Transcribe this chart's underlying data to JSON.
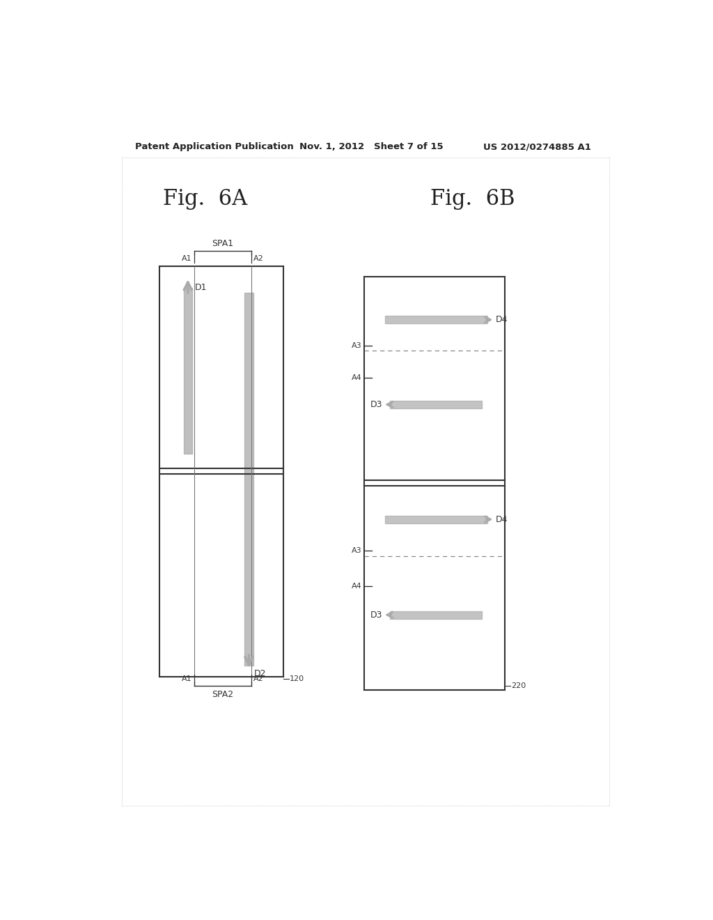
{
  "bg_color": "#ffffff",
  "header_left": "Patent Application Publication",
  "header_mid": "Nov. 1, 2012   Sheet 7 of 15",
  "header_right": "US 2012/0274885 A1",
  "fig6a_title": "Fig.  6A",
  "fig6b_title": "Fig.  6B",
  "arrow_color": "#aaaaaa",
  "line_color": "#333333",
  "dashed_color": "#888888"
}
